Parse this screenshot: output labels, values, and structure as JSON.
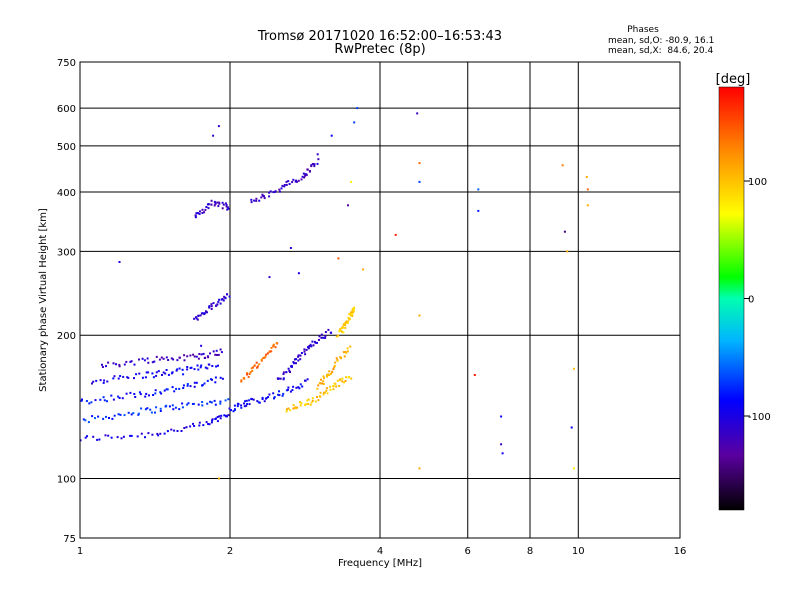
{
  "chart_data": {
    "type": "scatter",
    "title": "Tromsø 20171020 16:52:00–16:53:43",
    "subtitle": "RwPretec (8p)",
    "xlabel": "Frequency [MHz]",
    "ylabel": "Stationary phase Virtual Height [km]",
    "x_scale": "log",
    "y_scale": "log",
    "xlim": [
      1,
      16
    ],
    "ylim": [
      75,
      750
    ],
    "x_ticks": [
      1,
      2,
      4,
      6,
      8,
      10,
      16
    ],
    "x_tick_labels": [
      "1",
      "2",
      "4",
      "6",
      "8",
      "10",
      "16"
    ],
    "y_ticks": [
      75,
      100,
      200,
      300,
      400,
      500,
      600,
      750
    ],
    "y_tick_labels": [
      "75",
      "100",
      "200",
      "300",
      "400",
      "500",
      "600",
      "750"
    ],
    "grid": true,
    "phases_info": {
      "heading": "Phases",
      "line_o": "mean, sd,O: -80.9, 16.1",
      "line_x": "mean, sd,X:  84.6, 20.4"
    },
    "colorbar": {
      "label": "[deg]",
      "range": [
        -180,
        180
      ],
      "ticks": [
        100,
        0,
        -100
      ],
      "tick_labels": [
        "100",
        "0",
        "-100"
      ]
    },
    "traces": [
      {
        "freq": [
          1.0,
          1.4,
          1.8,
          2.0
        ],
        "height": [
          121,
          124,
          130,
          138
        ],
        "phase": -100
      },
      {
        "freq": [
          1.0,
          1.3,
          1.6,
          2.0
        ],
        "height": [
          132,
          138,
          142,
          146
        ],
        "phase": -75
      },
      {
        "freq": [
          1.0,
          1.3,
          1.6,
          1.95
        ],
        "height": [
          145,
          150,
          155,
          162
        ],
        "phase": -85
      },
      {
        "freq": [
          1.05,
          1.35,
          1.6,
          1.9
        ],
        "height": [
          160,
          165,
          168,
          175
        ],
        "phase": -95
      },
      {
        "freq": [
          1.1,
          1.4,
          1.7,
          1.95
        ],
        "height": [
          172,
          178,
          180,
          185
        ],
        "phase": -115
      },
      {
        "freq": [
          1.7,
          1.85,
          2.0
        ],
        "height": [
          355,
          380,
          370
        ],
        "phase": -115
      },
      {
        "freq": [
          2.2,
          2.5,
          2.8,
          3.0
        ],
        "height": [
          380,
          405,
          430,
          465
        ],
        "phase": -115
      },
      {
        "freq": [
          1.7,
          1.85,
          2.0
        ],
        "height": [
          215,
          230,
          245
        ],
        "phase": -110
      },
      {
        "freq": [
          2.0,
          2.2,
          2.5,
          2.9
        ],
        "height": [
          140,
          145,
          150,
          160
        ],
        "phase": -90
      },
      {
        "freq": [
          2.5,
          2.7,
          2.9,
          3.2
        ],
        "height": [
          160,
          175,
          190,
          205
        ],
        "phase": -110
      },
      {
        "freq": [
          2.6,
          2.9,
          3.2,
          3.5
        ],
        "height": [
          140,
          145,
          155,
          165
        ],
        "phase": 100
      },
      {
        "freq": [
          3.0,
          3.2,
          3.5
        ],
        "height": [
          155,
          170,
          190
        ],
        "phase": 110
      },
      {
        "freq": [
          3.3,
          3.45,
          3.55
        ],
        "height": [
          200,
          215,
          230
        ],
        "phase": 95
      },
      {
        "freq": [
          2.1,
          2.3,
          2.5
        ],
        "height": [
          160,
          175,
          195
        ],
        "phase": 140
      }
    ],
    "points": [
      {
        "freq": 1.2,
        "height": 285,
        "phase": -100
      },
      {
        "freq": 1.75,
        "height": 190,
        "phase": -100
      },
      {
        "freq": 1.85,
        "height": 525,
        "phase": -110
      },
      {
        "freq": 1.9,
        "height": 550,
        "phase": -115
      },
      {
        "freq": 2.4,
        "height": 265,
        "phase": -115
      },
      {
        "freq": 2.65,
        "height": 305,
        "phase": -110
      },
      {
        "freq": 2.75,
        "height": 270,
        "phase": -100
      },
      {
        "freq": 3.0,
        "height": 480,
        "phase": -115
      },
      {
        "freq": 3.2,
        "height": 525,
        "phase": -90
      },
      {
        "freq": 3.3,
        "height": 290,
        "phase": 150
      },
      {
        "freq": 3.45,
        "height": 375,
        "phase": -130
      },
      {
        "freq": 3.5,
        "height": 420,
        "phase": 80
      },
      {
        "freq": 3.55,
        "height": 560,
        "phase": -70
      },
      {
        "freq": 3.6,
        "height": 600,
        "phase": -70
      },
      {
        "freq": 3.7,
        "height": 275,
        "phase": 110
      },
      {
        "freq": 4.3,
        "height": 325,
        "phase": 170
      },
      {
        "freq": 4.75,
        "height": 585,
        "phase": -115
      },
      {
        "freq": 4.8,
        "height": 460,
        "phase": 140
      },
      {
        "freq": 4.8,
        "height": 420,
        "phase": -70
      },
      {
        "freq": 4.8,
        "height": 220,
        "phase": 110
      },
      {
        "freq": 4.8,
        "height": 105,
        "phase": 110
      },
      {
        "freq": 6.2,
        "height": 165,
        "phase": 170
      },
      {
        "freq": 6.3,
        "height": 405,
        "phase": -60
      },
      {
        "freq": 6.3,
        "height": 365,
        "phase": -80
      },
      {
        "freq": 7.0,
        "height": 135,
        "phase": -90
      },
      {
        "freq": 7.0,
        "height": 118,
        "phase": -115
      },
      {
        "freq": 7.05,
        "height": 113,
        "phase": -95
      },
      {
        "freq": 9.3,
        "height": 455,
        "phase": 130
      },
      {
        "freq": 9.4,
        "height": 330,
        "phase": -145
      },
      {
        "freq": 9.5,
        "height": 300,
        "phase": 110
      },
      {
        "freq": 9.7,
        "height": 128,
        "phase": -90
      },
      {
        "freq": 9.8,
        "height": 170,
        "phase": 100
      },
      {
        "freq": 9.8,
        "height": 105,
        "phase": 80
      },
      {
        "freq": 10.4,
        "height": 430,
        "phase": 110
      },
      {
        "freq": 10.45,
        "height": 405,
        "phase": 140
      },
      {
        "freq": 10.45,
        "height": 375,
        "phase": 110
      },
      {
        "freq": 1.9,
        "height": 100,
        "phase": 110
      }
    ]
  }
}
